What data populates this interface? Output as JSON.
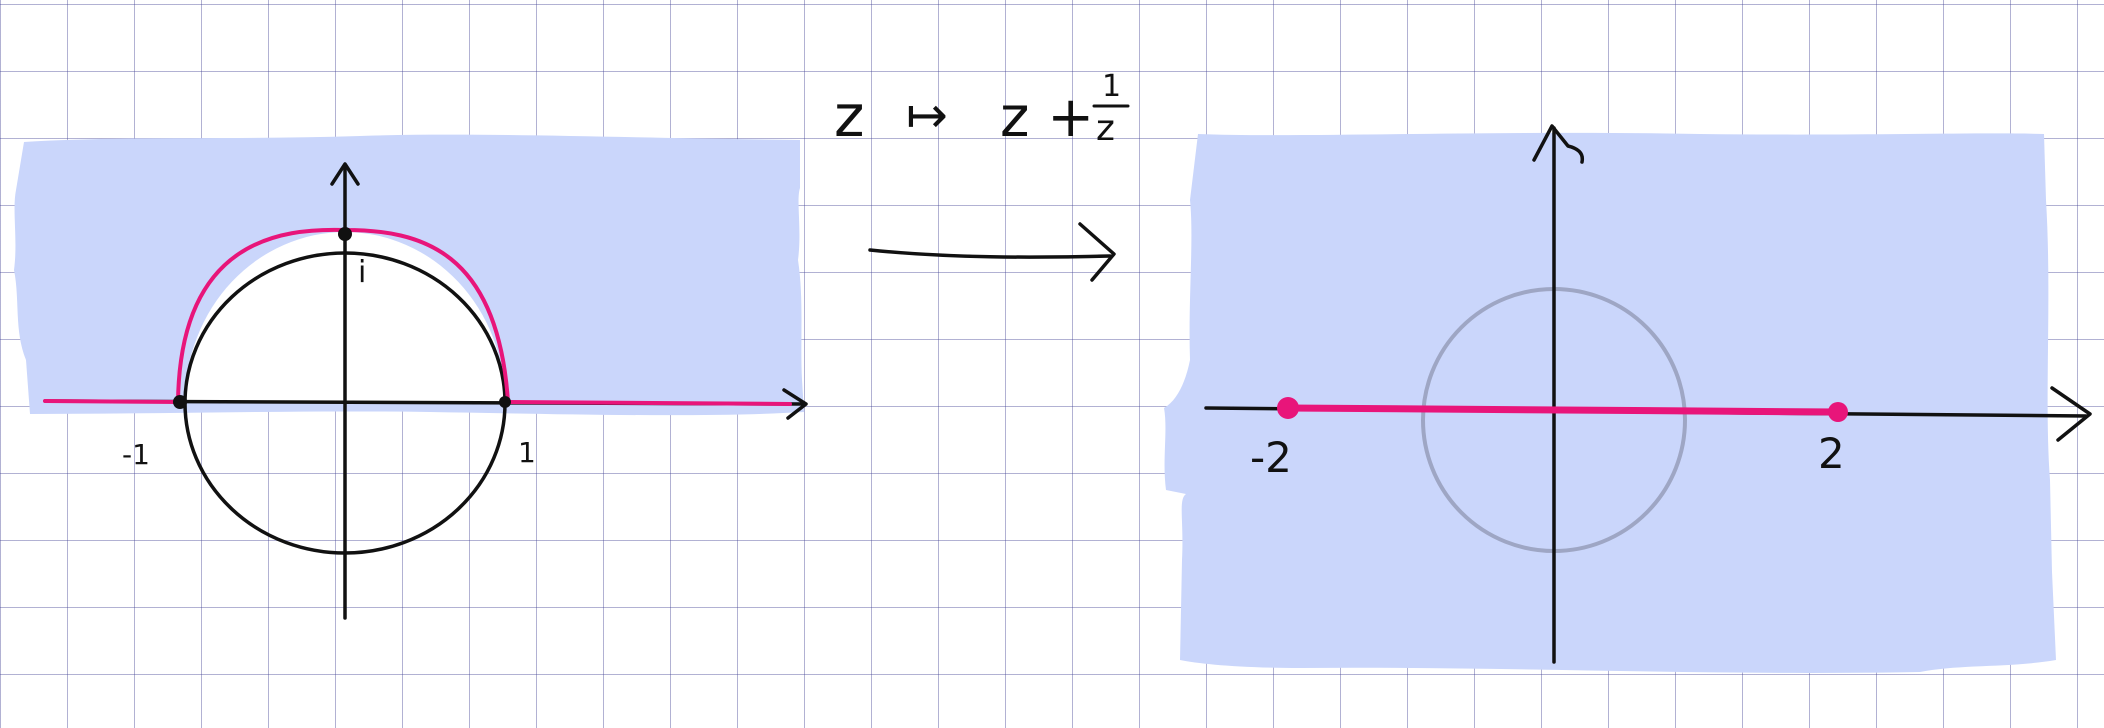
{
  "map_formula": {
    "input_var": "z",
    "maps_to": "↦",
    "output_expr": "z +",
    "fraction_numerator": "1",
    "fraction_denominator": "z"
  },
  "left_plane": {
    "label_neg_one": "-1",
    "label_one": "1",
    "label_i": "i"
  },
  "right_plane": {
    "label_neg_two": "-2",
    "label_two": "2"
  },
  "colors": {
    "region_fill": "#cad6fb",
    "highlight": "#e8157a",
    "ink": "#111111",
    "faded_circle": "#9ea6c4",
    "grid": "#5a5a9e"
  }
}
